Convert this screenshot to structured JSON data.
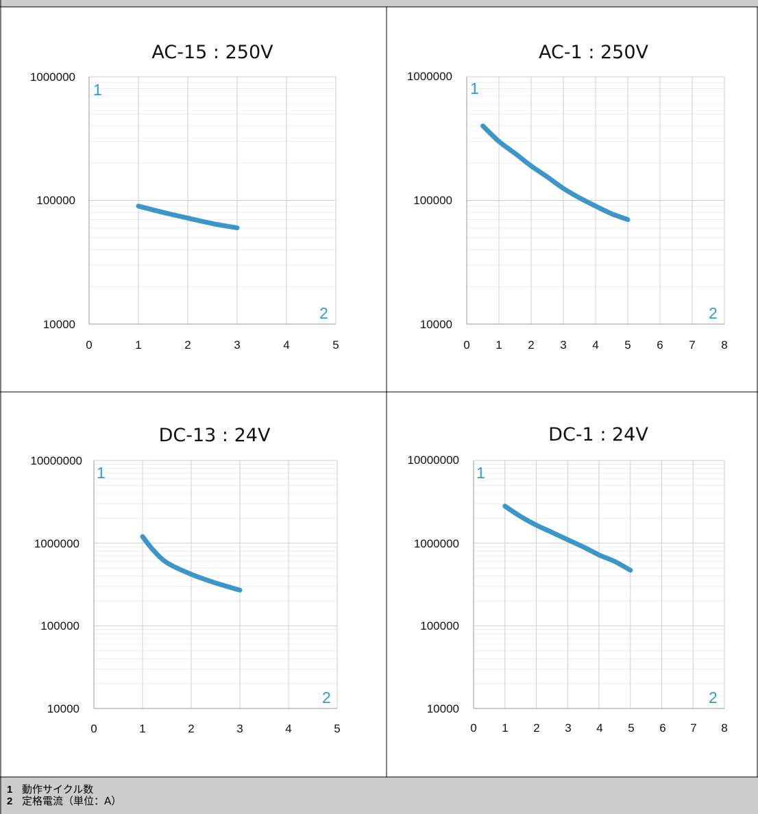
{
  "colors": {
    "line": "#3d96c8",
    "label": "#2f9bd6",
    "grid_major": "#cfcfcf",
    "grid_minor": "#ececec",
    "border": "#000000",
    "band": "#cccccc"
  },
  "legend": [
    {
      "num": "1",
      "text": "動作サイクル数"
    },
    {
      "num": "2",
      "text": "定格電流（単位：A）"
    }
  ],
  "chart_data": [
    {
      "type": "line",
      "title": "AC-15 : 250V",
      "y_scale": "log",
      "ylim": [
        10000,
        1000000
      ],
      "yticks": [
        "1000000",
        "100000",
        "10000"
      ],
      "xlim": [
        0,
        5
      ],
      "xticks": [
        "0",
        "1",
        "2",
        "3",
        "4",
        "5"
      ],
      "y_axis_marker": "1",
      "x_axis_marker": "2",
      "grid": true,
      "series": [
        {
          "x": [
            1,
            1.5,
            2,
            2.5,
            3
          ],
          "y": [
            90000,
            80000,
            72000,
            65000,
            60000
          ]
        }
      ]
    },
    {
      "type": "line",
      "title": "AC-1 : 250V",
      "y_scale": "log",
      "ylim": [
        10000,
        1000000
      ],
      "yticks": [
        "1000000",
        "100000",
        "10000"
      ],
      "xlim": [
        0,
        8
      ],
      "xticks": [
        "0",
        "1",
        "2",
        "3",
        "4",
        "5",
        "6",
        "7",
        "8"
      ],
      "y_axis_marker": "1",
      "x_axis_marker": "2",
      "grid": true,
      "series": [
        {
          "x": [
            0.5,
            1,
            1.5,
            2,
            2.5,
            3,
            3.5,
            4,
            4.5,
            5
          ],
          "y": [
            400000,
            300000,
            240000,
            190000,
            155000,
            125000,
            105000,
            90000,
            78000,
            70000
          ]
        }
      ]
    },
    {
      "type": "line",
      "title": "DC-13 : 24V",
      "y_scale": "log",
      "ylim": [
        10000,
        10000000
      ],
      "yticks": [
        "10000000",
        "1000000",
        "100000",
        "10000"
      ],
      "xlim": [
        0,
        5
      ],
      "xticks": [
        "0",
        "1",
        "2",
        "3",
        "4",
        "5"
      ],
      "y_axis_marker": "1",
      "x_axis_marker": "2",
      "grid": true,
      "series": [
        {
          "x": [
            1,
            1.2,
            1.5,
            2,
            2.5,
            3
          ],
          "y": [
            1200000,
            850000,
            580000,
            420000,
            330000,
            270000
          ]
        }
      ]
    },
    {
      "type": "line",
      "title": "DC-1 : 24V",
      "y_scale": "log",
      "ylim": [
        10000,
        10000000
      ],
      "yticks": [
        "10000000",
        "1000000",
        "100000",
        "10000"
      ],
      "xlim": [
        0,
        8
      ],
      "xticks": [
        "0",
        "1",
        "2",
        "3",
        "4",
        "5",
        "6",
        "7",
        "8"
      ],
      "y_axis_marker": "1",
      "x_axis_marker": "2",
      "grid": true,
      "series": [
        {
          "x": [
            1,
            1.5,
            2,
            2.5,
            3,
            3.5,
            4,
            4.5,
            5
          ],
          "y": [
            2800000,
            2100000,
            1650000,
            1350000,
            1100000,
            900000,
            720000,
            600000,
            470000
          ]
        }
      ]
    }
  ]
}
